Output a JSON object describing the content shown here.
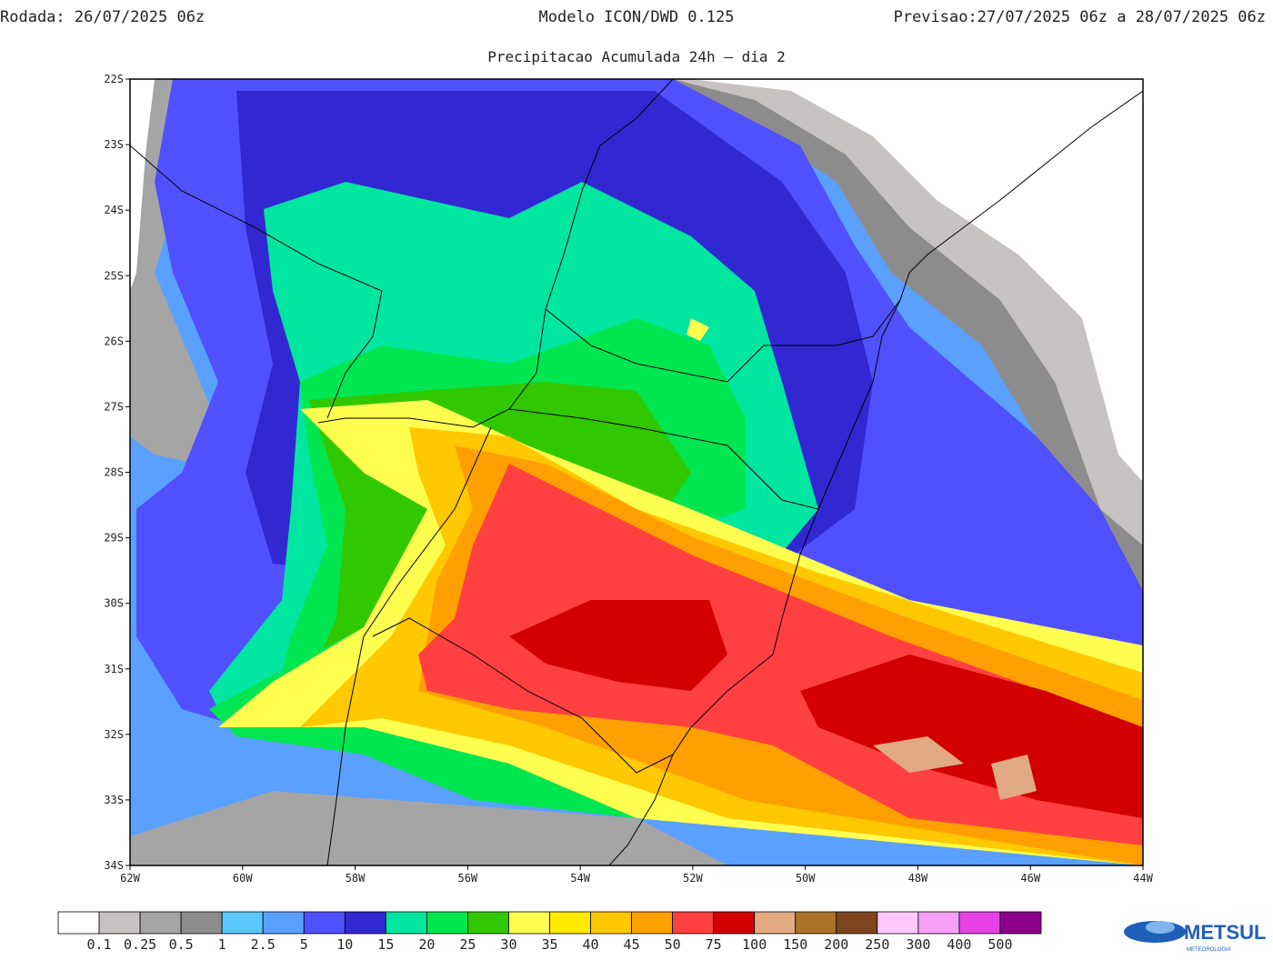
{
  "header": {
    "run": "Rodada: 26/07/2025 06z",
    "model": "Modelo ICON/DWD 0.125",
    "forecast": "Previsao:27/07/2025 06z a 28/07/2025 06z",
    "subtitle": "Precipitacao Acumulada 24h – dia 2"
  },
  "map": {
    "lonlim": [
      -62,
      -44
    ],
    "latlim": [
      -34,
      -22
    ],
    "lonticks": [
      {
        "value": -62,
        "label": "62W"
      },
      {
        "value": -60,
        "label": "60W"
      },
      {
        "value": -58,
        "label": "58W"
      },
      {
        "value": -56,
        "label": "56W"
      },
      {
        "value": -54,
        "label": "54W"
      },
      {
        "value": -52,
        "label": "52W"
      },
      {
        "value": -50,
        "label": "50W"
      },
      {
        "value": -48,
        "label": "48W"
      },
      {
        "value": -46,
        "label": "46W"
      },
      {
        "value": -44,
        "label": "44W"
      }
    ],
    "latticks": [
      {
        "value": -22,
        "label": "22S"
      },
      {
        "value": -23,
        "label": "23S"
      },
      {
        "value": -24,
        "label": "24S"
      },
      {
        "value": -25,
        "label": "25S"
      },
      {
        "value": -26,
        "label": "26S"
      },
      {
        "value": -27,
        "label": "27S"
      },
      {
        "value": -28,
        "label": "28S"
      },
      {
        "value": -29,
        "label": "29S"
      },
      {
        "value": -30,
        "label": "30S"
      },
      {
        "value": -31,
        "label": "31S"
      },
      {
        "value": -32,
        "label": "32S"
      },
      {
        "value": -33,
        "label": "33S"
      },
      {
        "value": -34,
        "label": "34S"
      }
    ]
  },
  "colorbar": {
    "levels": [
      0.1,
      0.25,
      0.5,
      1,
      2.5,
      5,
      10,
      15,
      20,
      25,
      30,
      35,
      40,
      45,
      50,
      75,
      100,
      150,
      200,
      250,
      300,
      400,
      500
    ],
    "colors": [
      "#ffffff",
      "#c8c3c3",
      "#a5a5a5",
      "#8c8c8c",
      "#5ac8fa",
      "#5aa0ff",
      "#5050ff",
      "#3228d2",
      "#00e6a0",
      "#00e650",
      "#32c800",
      "#ffff50",
      "#ffeb00",
      "#ffc800",
      "#ffa000",
      "#ff4040",
      "#d20000",
      "#e1aa82",
      "#aa7328",
      "#7d461e",
      "#ffc8ff",
      "#f5a0f5",
      "#e641e6",
      "#8c008c"
    ]
  },
  "logo": {
    "name": "METSUL",
    "tagline": "METEOROLOGIA"
  }
}
